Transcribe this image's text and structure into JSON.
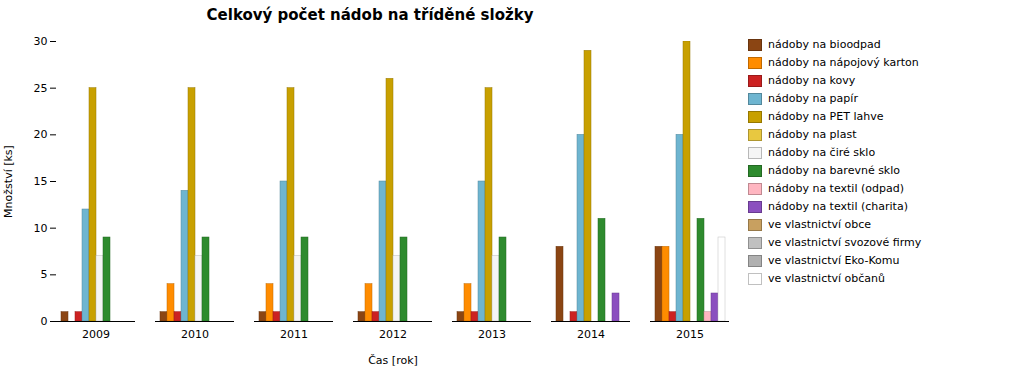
{
  "chart_data": {
    "type": "bar",
    "title": "Celkový počet nádob na tříděné složky",
    "xlabel": "Čas [rok]",
    "ylabel": "Množství [ks]",
    "categories": [
      "2009",
      "2010",
      "2011",
      "2012",
      "2013",
      "2014",
      "2015"
    ],
    "series": [
      {
        "name": "nádoby na bioodpad",
        "color": "#8B4513",
        "values": [
          1,
          1,
          1,
          1,
          1,
          8,
          8
        ]
      },
      {
        "name": "nádoby na nápojový karton",
        "color": "#FF8C00",
        "values": [
          0,
          4,
          4,
          4,
          4,
          0,
          8
        ]
      },
      {
        "name": "nádoby na kovy",
        "color": "#CC2222",
        "values": [
          1,
          1,
          1,
          1,
          1,
          1,
          1
        ]
      },
      {
        "name": "nádoby na papír",
        "color": "#6EB5D0",
        "values": [
          12,
          14,
          15,
          15,
          15,
          20,
          20
        ]
      },
      {
        "name": "nádoby na PET lahve",
        "color": "#C8A000",
        "values": [
          25,
          25,
          25,
          26,
          25,
          29,
          30
        ]
      },
      {
        "name": "nádoby na plast",
        "color": "#E8C840",
        "values": [
          0,
          0,
          0,
          0,
          0,
          0,
          0
        ]
      },
      {
        "name": "nádoby na čiré sklo",
        "color": "#F5F5F5",
        "values": [
          7,
          7,
          7,
          7,
          7,
          0,
          0
        ]
      },
      {
        "name": "nádoby na barevné sklo",
        "color": "#2E8B2E",
        "values": [
          9,
          9,
          9,
          9,
          9,
          11,
          11
        ]
      },
      {
        "name": "nádoby na textil (odpad)",
        "color": "#FFB6C1",
        "values": [
          0,
          0,
          0,
          0,
          0,
          0,
          1
        ]
      },
      {
        "name": "nádoby na textil (charita)",
        "color": "#8B4FBF",
        "values": [
          0,
          0,
          0,
          0,
          0,
          3,
          3
        ]
      },
      {
        "name": "ve vlastnictví obce",
        "color": "#C8A060",
        "values": [
          0,
          0,
          0,
          0,
          0,
          0,
          0
        ]
      },
      {
        "name": "ve vlastnictví svozové firmy",
        "color": "#C0C0C0",
        "values": [
          0,
          0,
          0,
          0,
          0,
          0,
          0
        ]
      },
      {
        "name": "ve vlastnictví Eko-Komu",
        "color": "#B0B0B0",
        "values": [
          0,
          0,
          0,
          0,
          0,
          0,
          0
        ]
      },
      {
        "name": "ve vlastnictví občanů",
        "color": "#FFFFFF",
        "values": [
          0,
          0,
          0,
          0,
          0,
          0,
          9
        ]
      }
    ],
    "ylim": [
      0,
      30
    ],
    "yticks": [
      0,
      5,
      10,
      15,
      20,
      25,
      30
    ],
    "grid": false,
    "legend": "right"
  }
}
